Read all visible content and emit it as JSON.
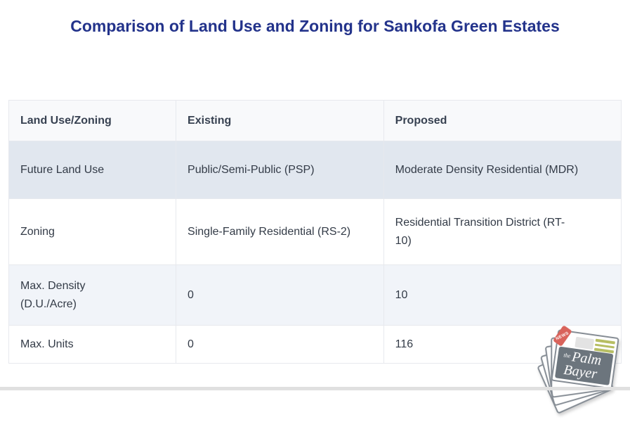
{
  "title": "Comparison of Land Use and Zoning for Sankofa Green Estates",
  "table": {
    "headers": [
      "Land Use/Zoning",
      "Existing",
      "Proposed"
    ],
    "rows": [
      [
        "Future Land Use",
        "Public/Semi-Public (PSP)",
        "Moderate Density Residential (MDR)"
      ],
      [
        "Zoning",
        "Single-Family Residential (RS-2)",
        "Residential Transition District (RT-10)"
      ],
      [
        "Max. Density (D.U./Acre)",
        "0",
        "10"
      ],
      [
        "Max. Units",
        "0",
        "116"
      ]
    ]
  },
  "logo": {
    "badge": "NEWS",
    "word1": "the",
    "word2": "Palm",
    "word3": "Bayer"
  },
  "colors": {
    "title_text": "#23338b",
    "header_bg": "#f8f9fb",
    "row_shaded_dark": "#e1e7ef",
    "row_shaded_light": "#f1f4f9",
    "border": "#e7e9ee",
    "logo_ribbon_red": "#d9635b",
    "logo_masthead_gray": "#6c757d",
    "logo_lines_olive": "#b7be63",
    "bottom_bar_gray": "#e0e0e0"
  }
}
